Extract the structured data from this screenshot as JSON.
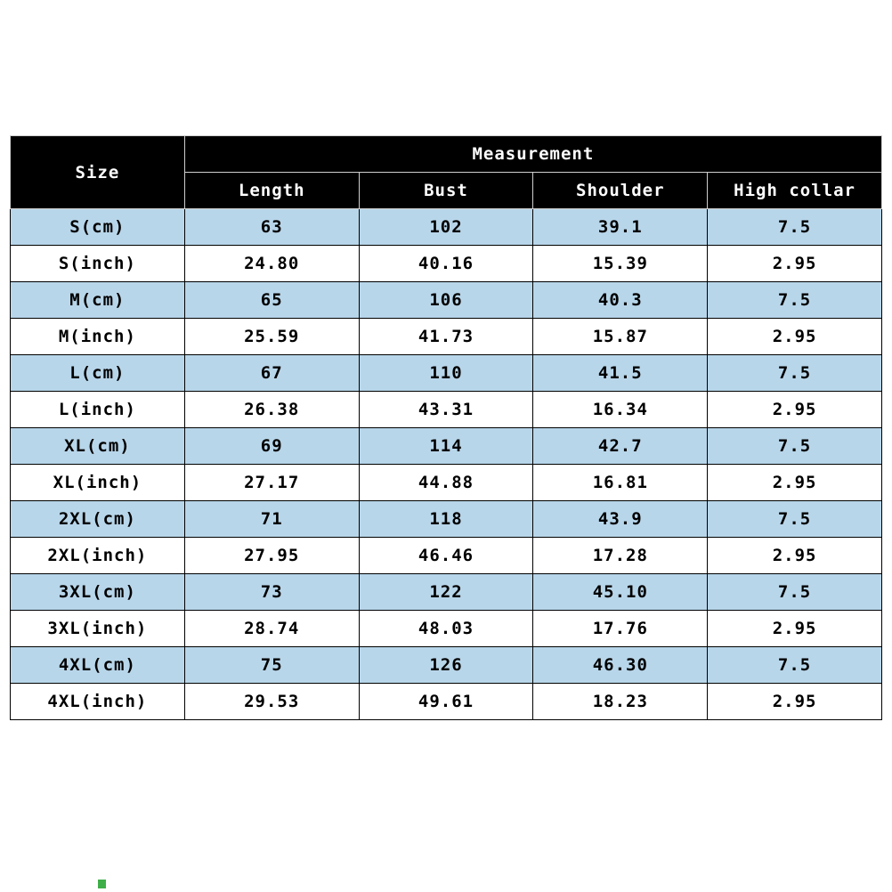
{
  "colors": {
    "header_background": "#000000",
    "header_text": "#ffffff",
    "row_alt_blue": "#b8d6ea",
    "row_white": "#ffffff",
    "body_text": "#000000",
    "green_mark": "#3fae49"
  },
  "chart_data": {
    "type": "table",
    "title": "",
    "group_header": "Measurement",
    "columns": [
      "Size",
      "Length",
      "Bust",
      "Shoulder",
      "High collar"
    ],
    "rows": [
      [
        "S(cm)",
        "63",
        "102",
        "39.1",
        "7.5"
      ],
      [
        "S(inch)",
        "24.80",
        "40.16",
        "15.39",
        "2.95"
      ],
      [
        "M(cm)",
        "65",
        "106",
        "40.3",
        "7.5"
      ],
      [
        "M(inch)",
        "25.59",
        "41.73",
        "15.87",
        "2.95"
      ],
      [
        "L(cm)",
        "67",
        "110",
        "41.5",
        "7.5"
      ],
      [
        "L(inch)",
        "26.38",
        "43.31",
        "16.34",
        "2.95"
      ],
      [
        "XL(cm)",
        "69",
        "114",
        "42.7",
        "7.5"
      ],
      [
        "XL(inch)",
        "27.17",
        "44.88",
        "16.81",
        "2.95"
      ],
      [
        "2XL(cm)",
        "71",
        "118",
        "43.9",
        "7.5"
      ],
      [
        "2XL(inch)",
        "27.95",
        "46.46",
        "17.28",
        "2.95"
      ],
      [
        "3XL(cm)",
        "73",
        "122",
        "45.10",
        "7.5"
      ],
      [
        "3XL(inch)",
        "28.74",
        "48.03",
        "17.76",
        "2.95"
      ],
      [
        "4XL(cm)",
        "75",
        "126",
        "46.30",
        "7.5"
      ],
      [
        "4XL(inch)",
        "29.53",
        "49.61",
        "18.23",
        "2.95"
      ]
    ]
  }
}
